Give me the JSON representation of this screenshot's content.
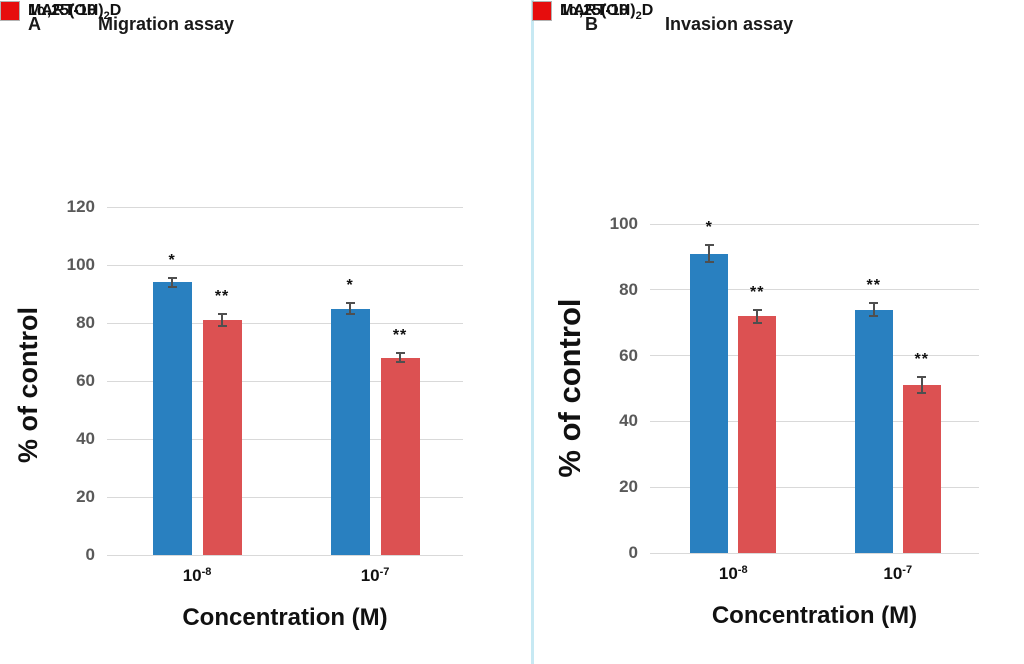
{
  "figure": {
    "background": "#ffffff",
    "divider_color": "#c7e9f3"
  },
  "colors": {
    "bar_blue": "#2980c0",
    "bar_red": "#dc5152",
    "legend_blue": "#1b78be",
    "legend_red": "#e60d0d",
    "gridline": "#d9d9d9",
    "tick_label": "#595959",
    "error_bar": "#4f4f4f",
    "text": "#111111"
  },
  "chart_data": [
    {
      "type": "bar",
      "panel_label": "A",
      "title": "Migration assay",
      "xlabel": "Concentration (M)",
      "ylabel": "% of control",
      "ylim": [
        0,
        120
      ],
      "yticks": [
        0,
        20,
        40,
        60,
        80,
        100,
        120
      ],
      "grid": "horizontal",
      "legend_position": "top-right",
      "categories": [
        {
          "base": "10",
          "sup": "-8"
        },
        {
          "base": "10",
          "sup": "-7"
        }
      ],
      "series": [
        {
          "name": "1α,25(OH)2D",
          "label_parts": [
            {
              "t": "1α,25(OH)"
            },
            {
              "t": "2",
              "sub": true
            },
            {
              "t": "D"
            }
          ],
          "color_key": "blue",
          "values": [
            94,
            85
          ],
          "errors": [
            1.5,
            2
          ],
          "sig": [
            "*",
            "*"
          ]
        },
        {
          "name": "MART-10",
          "label_parts": [
            {
              "t": "MART-10"
            }
          ],
          "color_key": "red",
          "values": [
            81,
            68
          ],
          "errors": [
            2,
            1.5
          ],
          "sig": [
            "**",
            "**"
          ]
        }
      ]
    },
    {
      "type": "bar",
      "panel_label": "B",
      "title": "Invasion assay",
      "xlabel": "Concentration (M)",
      "ylabel": "% of control",
      "ylim": [
        0,
        100
      ],
      "yticks": [
        0,
        20,
        40,
        60,
        80,
        100
      ],
      "grid": "horizontal",
      "legend_position": "top-right",
      "categories": [
        {
          "base": "10",
          "sup": "-8"
        },
        {
          "base": "10",
          "sup": "-7"
        }
      ],
      "series": [
        {
          "name": "1α,25(OH)2D",
          "label_parts": [
            {
              "t": "1α,25(OH)"
            },
            {
              "t": "2",
              "sub": true
            },
            {
              "t": "D"
            }
          ],
          "color_key": "blue",
          "values": [
            91,
            74
          ],
          "errors": [
            2.5,
            2
          ],
          "sig": [
            "*",
            "**"
          ]
        },
        {
          "name": "MART-10",
          "label_parts": [
            {
              "t": "MART-10"
            }
          ],
          "color_key": "red",
          "values": [
            72,
            51
          ],
          "errors": [
            2,
            2.5
          ],
          "sig": [
            "**",
            "**"
          ]
        }
      ]
    }
  ]
}
